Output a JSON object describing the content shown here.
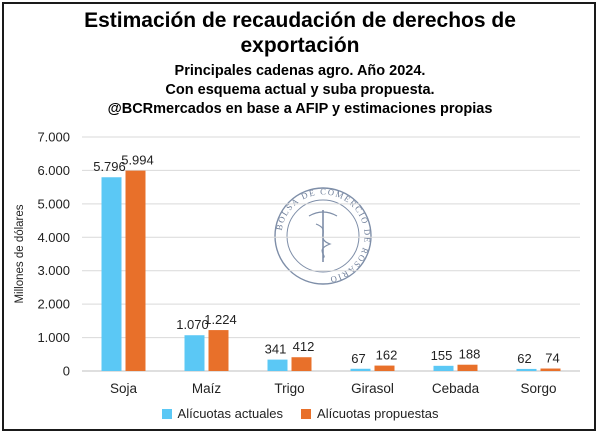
{
  "title_line1": "Estimación de recaudación de derechos de",
  "title_line2": "exportación",
  "subtitle_line1": "Principales cadenas agro. Año 2024.",
  "subtitle_line2": "Con esquema actual y suba propuesta.",
  "subtitle_line3": "@BCRmercados en base a AFIP y estimaciones propias",
  "watermark": "BOLSA DE COMERCIO DE ROSARIO",
  "colors": {
    "actual": "#5bc8f5",
    "propuesta": "#e8702a"
  },
  "chart_data": {
    "type": "bar",
    "categories": [
      "Soja",
      "Maíz",
      "Trigo",
      "Girasol",
      "Cebada",
      "Sorgo"
    ],
    "series": [
      {
        "name": "Alícuotas actuales",
        "values": [
          5796,
          1070,
          341,
          67,
          155,
          62
        ]
      },
      {
        "name": "Alícuotas propuestas",
        "values": [
          5994,
          1224,
          412,
          162,
          188,
          74
        ]
      }
    ],
    "value_labels": {
      "Alícuotas actuales": [
        "5.796",
        "1.070",
        "341",
        "67",
        "155",
        "62"
      ],
      "Alícuotas propuestas": [
        "5.994",
        "1.224",
        "412",
        "162",
        "188",
        "74"
      ]
    },
    "ylabel": "Millones de dólares",
    "xlabel": "",
    "ylim": [
      0,
      7000
    ],
    "yticks": [
      0,
      1000,
      2000,
      3000,
      4000,
      5000,
      6000,
      7000
    ],
    "ytick_labels": [
      "0",
      "1.000",
      "2.000",
      "3.000",
      "4.000",
      "5.000",
      "6.000",
      "7.000"
    ],
    "grid": true,
    "legend_position": "bottom"
  }
}
